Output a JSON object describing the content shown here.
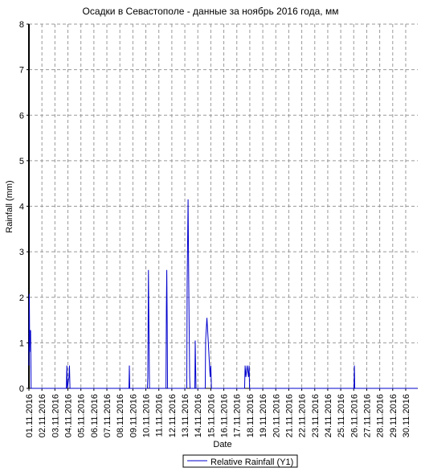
{
  "chart_data": {
    "type": "line",
    "title": "Осадки в Севастополе - данные за ноябрь 2016 года, мм",
    "x_label": "Date",
    "y_label": "Rainfall (mm)",
    "xlim": [
      1,
      30.93
    ],
    "ylim": [
      0,
      8
    ],
    "yticks": [
      0,
      1,
      2,
      3,
      4,
      5,
      6,
      7,
      8
    ],
    "xticks": [
      {
        "value": 1,
        "label": "01.11.2016"
      },
      {
        "value": 2,
        "label": "02.11.2016"
      },
      {
        "value": 3,
        "label": "03.11.2016"
      },
      {
        "value": 4,
        "label": "04.11.2016"
      },
      {
        "value": 5,
        "label": "05.11.2016"
      },
      {
        "value": 6,
        "label": "06.11.2016"
      },
      {
        "value": 7,
        "label": "07.11.2016"
      },
      {
        "value": 8,
        "label": "08.11.2016"
      },
      {
        "value": 9,
        "label": "09.11.2016"
      },
      {
        "value": 10,
        "label": "10.11.2016"
      },
      {
        "value": 11,
        "label": "11.11.2016"
      },
      {
        "value": 12,
        "label": "12.11.2016"
      },
      {
        "value": 13,
        "label": "13.11.2016"
      },
      {
        "value": 14,
        "label": "14.11.2016"
      },
      {
        "value": 15,
        "label": "15.11.2016"
      },
      {
        "value": 16,
        "label": "16.11.2016"
      },
      {
        "value": 17,
        "label": "17.11.2016"
      },
      {
        "value": 18,
        "label": "18.11.2016"
      },
      {
        "value": 19,
        "label": "19.11.2016"
      },
      {
        "value": 20,
        "label": "20.11.2016"
      },
      {
        "value": 21,
        "label": "21.11.2016"
      },
      {
        "value": 22,
        "label": "22.11.2016"
      },
      {
        "value": 23,
        "label": "23.11.2016"
      },
      {
        "value": 24,
        "label": "24.11.2016"
      },
      {
        "value": 25,
        "label": "25.11.2016"
      },
      {
        "value": 26,
        "label": "26.11.2016"
      },
      {
        "value": 27,
        "label": "27.11.2016"
      },
      {
        "value": 28,
        "label": "28.11.2016"
      },
      {
        "value": 29,
        "label": "29.11.2016"
      },
      {
        "value": 30,
        "label": "30.11.2016"
      }
    ],
    "grid": true,
    "x": [
      1,
      1.03,
      1.06,
      1.09,
      1.13,
      1.17,
      1.2,
      3.88,
      3.92,
      3.96,
      4.08,
      4.12,
      4.16,
      8.7,
      8.73,
      8.76,
      10.12,
      10.15,
      10.2,
      10.24,
      10.28,
      11.55,
      11.58,
      11.61,
      11.64,
      11.67,
      13.15,
      13.18,
      13.25,
      13.3,
      13.37,
      13.4,
      13.77,
      13.8,
      13.83,
      13.86,
      14.57,
      14.6,
      14.7,
      14.8,
      14.9,
      14.95,
      15.0,
      15.05,
      17.6,
      17.64,
      17.7,
      17.8,
      17.9,
      17.95,
      17.98,
      26.02,
      26.05,
      26.08,
      30.9
    ],
    "series": [
      {
        "name": "Relative Rainfall (Y1)",
        "color": "#0000cc",
        "values": [
          0.5,
          2.07,
          0.8,
          1.27,
          1.27,
          0,
          0,
          0,
          0.5,
          0,
          0.25,
          0.5,
          0,
          0,
          0.5,
          0,
          0,
          0.25,
          2.6,
          1.27,
          0,
          0,
          1.8,
          2.6,
          1.55,
          0,
          0,
          2.33,
          4.15,
          2.33,
          0.25,
          0,
          0,
          1.05,
          0.5,
          0,
          0,
          1.05,
          1.55,
          1.05,
          0.5,
          0.25,
          0.5,
          0,
          0,
          0.5,
          0.25,
          0.5,
          0.25,
          0.5,
          0,
          0,
          0.5,
          0,
          0
        ]
      }
    ]
  }
}
